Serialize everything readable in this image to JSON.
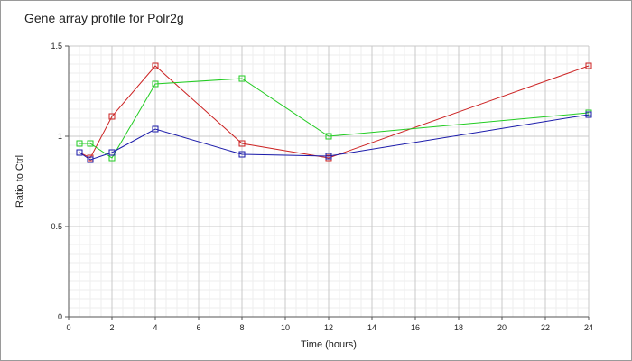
{
  "chart_data": {
    "type": "line",
    "title": "Gene array profile for Polr2g",
    "xlabel": "Time (hours)",
    "ylabel": "Ratio to Ctrl",
    "xlim": [
      0,
      24
    ],
    "ylim": [
      0,
      1.5
    ],
    "x_ticks": [
      "0",
      "2",
      "4",
      "6",
      "8",
      "10",
      "12",
      "14",
      "16",
      "18",
      "20",
      "22",
      "24"
    ],
    "y_ticks": [
      "0",
      "0.5",
      "1",
      "1.5"
    ],
    "grid": true,
    "legend": "none",
    "series": [
      {
        "color": "#cc2222",
        "points": [
          [
            0.5,
            0.91
          ],
          [
            1,
            0.88
          ],
          [
            2,
            1.11
          ],
          [
            4,
            1.39
          ],
          [
            8,
            0.96
          ],
          [
            12,
            0.88
          ],
          [
            24,
            1.39
          ]
        ]
      },
      {
        "color": "#22cc22",
        "points": [
          [
            0.5,
            0.96
          ],
          [
            1,
            0.96
          ],
          [
            2,
            0.88
          ],
          [
            4,
            1.29
          ],
          [
            8,
            1.32
          ],
          [
            12,
            1.0
          ],
          [
            24,
            1.13
          ]
        ]
      },
      {
        "color": "#1a1aaa",
        "points": [
          [
            0.5,
            0.91
          ],
          [
            1,
            0.87
          ],
          [
            2,
            0.91
          ],
          [
            4,
            1.04
          ],
          [
            8,
            0.9
          ],
          [
            12,
            0.89
          ],
          [
            24,
            1.12
          ]
        ]
      }
    ]
  }
}
